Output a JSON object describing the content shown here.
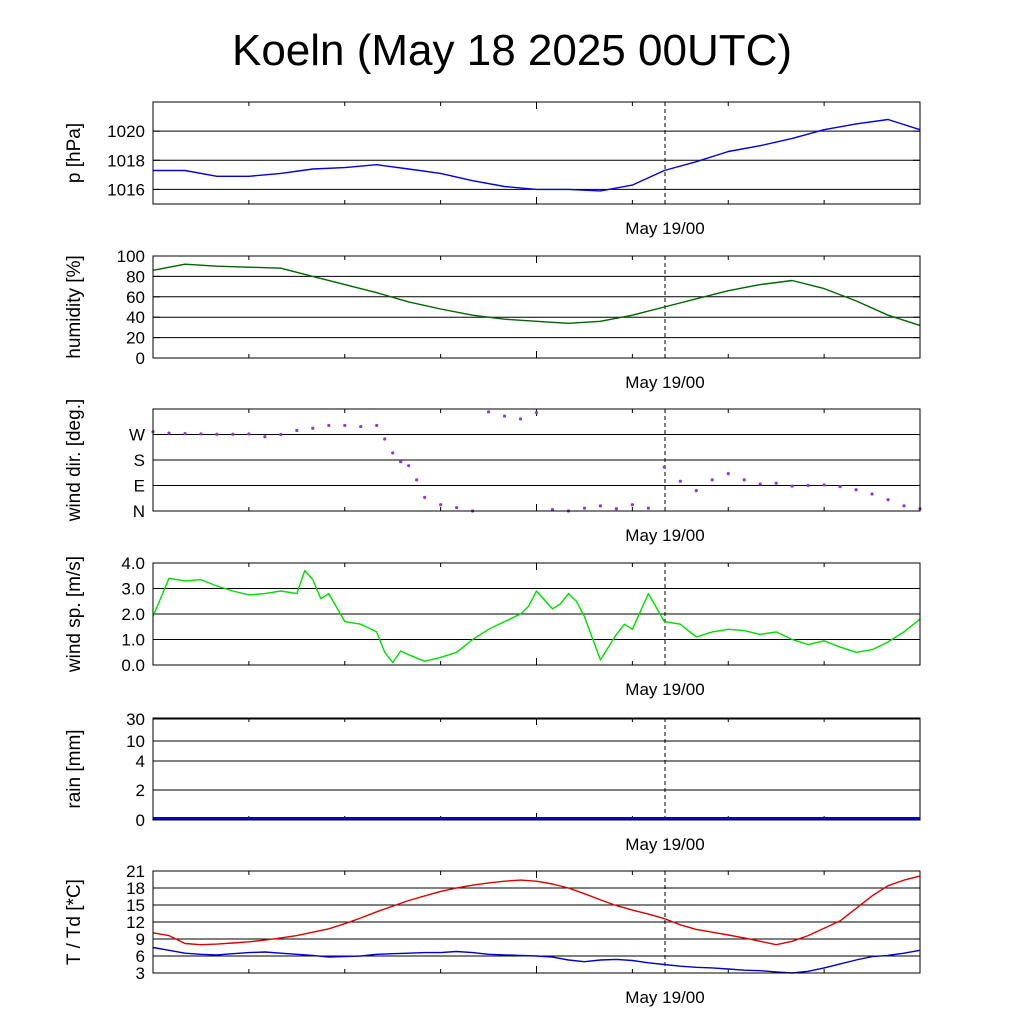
{
  "title": "Koeln (May 18 2025 00UTC)",
  "marker_label": "May 19/00",
  "chart_data": [
    {
      "type": "line",
      "ylabel": "p [hPa]",
      "ylim": [
        1015,
        1022
      ],
      "yticks": [
        1016,
        1018,
        1020
      ],
      "ytick_labels": [
        "1016",
        "1018",
        "1020"
      ],
      "color": "#0000dd",
      "x": [
        0,
        2,
        4,
        6,
        8,
        10,
        12,
        14,
        16,
        18,
        20,
        22,
        24,
        26,
        28,
        30,
        32,
        34,
        36,
        38,
        40,
        42,
        44,
        46,
        48
      ],
      "values": [
        1017.3,
        1017.3,
        1016.9,
        1016.9,
        1017.1,
        1017.4,
        1017.5,
        1017.7,
        1017.4,
        1017.1,
        1016.6,
        1016.2,
        1016.0,
        1016.0,
        1015.9,
        1016.3,
        1017.3,
        1017.9,
        1018.6,
        1019.0,
        1019.5,
        1020.1,
        1020.5,
        1020.8,
        1020.1
      ]
    },
    {
      "type": "line",
      "ylabel": "humidity [%]",
      "ylim": [
        0,
        100
      ],
      "yticks": [
        0,
        20,
        40,
        60,
        80,
        100
      ],
      "ytick_labels": [
        "0",
        "20",
        "40",
        "60",
        "80",
        "100"
      ],
      "color": "#006400",
      "x": [
        0,
        2,
        4,
        6,
        8,
        10,
        12,
        14,
        16,
        18,
        20,
        22,
        24,
        26,
        28,
        30,
        32,
        34,
        36,
        38,
        40,
        42,
        44,
        46,
        48
      ],
      "values": [
        86,
        92,
        90,
        89,
        88,
        80,
        72,
        64,
        55,
        48,
        42,
        38,
        36,
        34,
        36,
        42,
        50,
        58,
        66,
        72,
        76,
        68,
        56,
        42,
        32
      ]
    },
    {
      "type": "scatter",
      "ylabel": "wind dir. [deg.]",
      "ylim": [
        0,
        360
      ],
      "yticks": [
        0,
        90,
        180,
        270
      ],
      "ytick_labels": [
        "N",
        "E",
        "S",
        "W"
      ],
      "color": "#9a30e0",
      "x": [
        0,
        1,
        2,
        3,
        4,
        5,
        6,
        7,
        8,
        9,
        10,
        11,
        12,
        13,
        14,
        14.5,
        15,
        15.5,
        16,
        16.5,
        17,
        18,
        19,
        20,
        21,
        22,
        23,
        24,
        25,
        26,
        27,
        28,
        29,
        30,
        31,
        32,
        33,
        34,
        35,
        36,
        37,
        38,
        39,
        40,
        41,
        42,
        43,
        44,
        45,
        46,
        47,
        48
      ],
      "values": [
        280,
        275,
        273,
        272,
        271,
        271,
        272,
        262,
        270,
        284,
        292,
        302,
        302,
        298,
        302,
        254,
        205,
        174,
        160,
        110,
        48,
        22,
        12,
        0,
        350,
        335,
        325,
        347,
        5,
        0,
        10,
        18,
        8,
        22,
        10,
        155,
        105,
        72,
        110,
        132,
        110,
        95,
        98,
        88,
        90,
        92,
        86,
        75,
        60,
        40,
        18,
        8
      ]
    },
    {
      "type": "line",
      "ylabel": "wind sp. [m/s]",
      "ylim": [
        0,
        4
      ],
      "yticks": [
        0,
        1,
        2,
        3,
        4
      ],
      "ytick_labels": [
        "0.0",
        "1.0",
        "2.0",
        "3.0",
        "4.0"
      ],
      "color": "#00dd00",
      "x": [
        0,
        1,
        2,
        3,
        4,
        5,
        6,
        7,
        8,
        9,
        9.5,
        10,
        10.5,
        11,
        12,
        13,
        14,
        14.5,
        15,
        15.5,
        16,
        17,
        18,
        19,
        20,
        21,
        22,
        23,
        23.5,
        24,
        25,
        25.5,
        26,
        26.5,
        27,
        28,
        29,
        29.5,
        30,
        31,
        32,
        33,
        34,
        35,
        36,
        37,
        38,
        39,
        40,
        41,
        42,
        43,
        44,
        45,
        46,
        47,
        48
      ],
      "values": [
        1.9,
        3.4,
        3.3,
        3.35,
        3.1,
        2.9,
        2.75,
        2.8,
        2.9,
        2.8,
        3.7,
        3.35,
        2.6,
        2.8,
        1.7,
        1.6,
        1.3,
        0.5,
        0.1,
        0.55,
        0.4,
        0.15,
        0.3,
        0.5,
        1.0,
        1.4,
        1.7,
        2.0,
        2.3,
        2.9,
        2.2,
        2.4,
        2.8,
        2.5,
        1.9,
        0.2,
        1.2,
        1.6,
        1.4,
        2.8,
        1.7,
        1.6,
        1.1,
        1.3,
        1.4,
        1.35,
        1.2,
        1.3,
        1.0,
        0.8,
        0.95,
        0.7,
        0.5,
        0.6,
        0.9,
        1.3,
        1.8
      ]
    },
    {
      "type": "bar",
      "ylabel": "rain [mm]",
      "ylim": [
        0,
        30
      ],
      "scale": "nonlinear",
      "yticks": [
        0,
        2,
        4,
        10,
        30
      ],
      "ytick_labels": [
        "0",
        "2",
        "4",
        "10",
        "30"
      ],
      "color": "#0000dd",
      "x": [
        0,
        48
      ],
      "values": [
        0,
        0
      ]
    },
    {
      "type": "line",
      "ylabel": "T / Td [*C]",
      "ylim": [
        3,
        21
      ],
      "yticks": [
        3,
        6,
        9,
        12,
        15,
        18,
        21
      ],
      "ytick_labels": [
        "3",
        "6",
        "9",
        "12",
        "15",
        "18",
        "21"
      ],
      "x": [
        0,
        1,
        2,
        3,
        4,
        5,
        6,
        7,
        8,
        9,
        10,
        11,
        12,
        13,
        14,
        15,
        16,
        17,
        18,
        19,
        20,
        21,
        22,
        23,
        24,
        25,
        26,
        27,
        28,
        29,
        30,
        31,
        32,
        33,
        34,
        35,
        36,
        37,
        38,
        39,
        40,
        41,
        42,
        43,
        44,
        45,
        46,
        47,
        48
      ],
      "series": [
        {
          "color": "#dd0000",
          "values": [
            10.1,
            9.6,
            8.2,
            8.0,
            8.1,
            8.3,
            8.5,
            8.8,
            9.2,
            9.6,
            10.2,
            10.8,
            11.7,
            12.7,
            13.8,
            14.8,
            15.8,
            16.6,
            17.4,
            18.0,
            18.5,
            18.9,
            19.2,
            19.4,
            19.2,
            18.7,
            18.0,
            17.0,
            15.9,
            14.9,
            14.1,
            13.4,
            12.6,
            11.5,
            10.7,
            10.2,
            9.7,
            9.2,
            8.6,
            8.0,
            8.6,
            9.6,
            10.9,
            12.2,
            14.4,
            16.6,
            18.4,
            19.4,
            20.1
          ]
        },
        {
          "color": "#0000cc",
          "values": [
            7.5,
            7.0,
            6.5,
            6.3,
            6.2,
            6.4,
            6.6,
            6.7,
            6.5,
            6.3,
            6.1,
            5.8,
            5.9,
            6.0,
            6.3,
            6.4,
            6.5,
            6.6,
            6.6,
            6.8,
            6.6,
            6.3,
            6.2,
            6.1,
            6.0,
            5.8,
            5.3,
            5.0,
            5.3,
            5.4,
            5.2,
            4.8,
            4.5,
            4.2,
            4.0,
            3.9,
            3.7,
            3.5,
            3.4,
            3.2,
            3.0,
            3.3,
            3.9,
            4.6,
            5.3,
            5.9,
            6.1,
            6.5,
            7.0
          ]
        }
      ]
    }
  ]
}
